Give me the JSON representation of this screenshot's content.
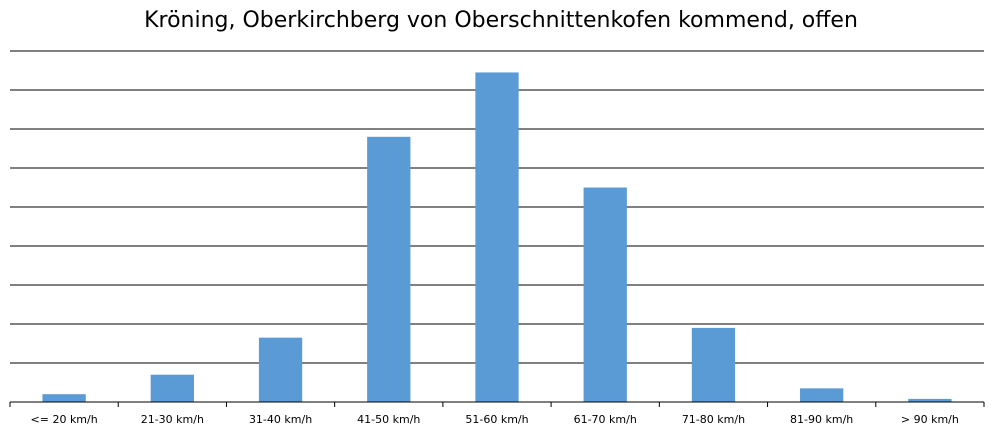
{
  "chart_data": {
    "type": "bar",
    "title": "Kröning, Oberkirchberg von Oberschnittenkofen kommend, offen",
    "xlabel": "",
    "ylabel": "",
    "categories": [
      "<= 20 km/h",
      "21-30 km/h",
      "31-40 km/h",
      "41-50 km/h",
      "51-60 km/h",
      "61-70 km/h",
      "71-80 km/h",
      "81-90 km/h",
      "> 90 km/h"
    ],
    "values": [
      0.2,
      0.7,
      1.65,
      6.8,
      8.45,
      5.5,
      1.9,
      0.35,
      0.08
    ],
    "ylim": [
      0,
      9
    ],
    "y_gridlines": 9,
    "y_tick_labels_visible": false,
    "grid": true,
    "legend": "none",
    "bar_color": "#5b9bd5",
    "grid_color": "#000000"
  }
}
